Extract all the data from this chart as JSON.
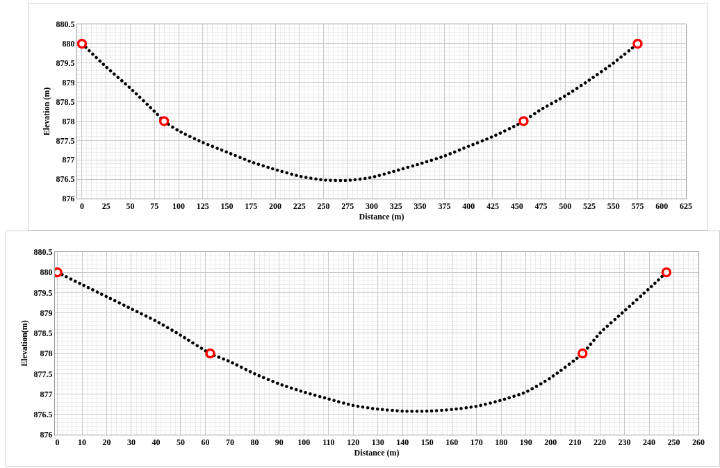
{
  "chart_data": [
    {
      "type": "scatter",
      "xlabel": "Distance (m)",
      "ylabel": "Elevation (m)",
      "xlim": [
        -5,
        625
      ],
      "ylim": [
        876,
        880.5
      ],
      "xticks": [
        0,
        25,
        50,
        75,
        100,
        125,
        150,
        175,
        200,
        225,
        250,
        275,
        300,
        325,
        350,
        375,
        400,
        425,
        450,
        475,
        500,
        525,
        550,
        575,
        600,
        625
      ],
      "yticks": [
        876,
        876.5,
        877,
        877.5,
        878,
        878.5,
        879,
        879.5,
        880,
        880.5
      ],
      "grid": true,
      "legend": false,
      "series": [
        {
          "type": "line",
          "color": "#000000",
          "marker": "none",
          "line_style": "dotted",
          "x": [
            0,
            25,
            50,
            75,
            85,
            100,
            125,
            150,
            175,
            200,
            225,
            250,
            275,
            300,
            325,
            350,
            375,
            400,
            425,
            450,
            457,
            475,
            500,
            525,
            550,
            575
          ],
          "values": [
            880,
            879.4,
            878.85,
            878.25,
            878,
            877.75,
            877.45,
            877.2,
            876.95,
            876.75,
            876.58,
            876.48,
            876.47,
            876.55,
            876.72,
            876.9,
            877.1,
            877.35,
            877.6,
            877.9,
            878,
            878.3,
            878.65,
            879.06,
            879.5,
            880
          ]
        },
        {
          "color": "#ff0000",
          "marker": "circle",
          "x": [
            0,
            85,
            457,
            575
          ],
          "values": [
            880,
            878,
            878,
            880
          ]
        }
      ]
    },
    {
      "type": "scatter",
      "xlabel": "Distance (m)",
      "ylabel": "Elevation(m)",
      "xlim": [
        -1,
        260
      ],
      "ylim": [
        876,
        880.5
      ],
      "xticks": [
        0,
        10,
        20,
        30,
        40,
        50,
        60,
        70,
        80,
        90,
        100,
        110,
        120,
        130,
        140,
        150,
        160,
        170,
        180,
        190,
        200,
        210,
        220,
        230,
        240,
        250,
        260
      ],
      "yticks": [
        876,
        876.5,
        877,
        877.5,
        878,
        878.5,
        879,
        879.5,
        880,
        880.5
      ],
      "grid": true,
      "legend": false,
      "series": [
        {
          "type": "line",
          "color": "#000000",
          "marker": "none",
          "line_style": "dotted",
          "x": [
            0,
            10,
            20,
            30,
            40,
            50,
            62,
            70,
            80,
            90,
            100,
            110,
            120,
            130,
            140,
            150,
            160,
            170,
            180,
            190,
            200,
            213,
            220,
            230,
            240,
            247
          ],
          "values": [
            880,
            879.7,
            879.4,
            879.1,
            878.8,
            878.45,
            878,
            877.8,
            877.5,
            877.25,
            877.05,
            876.88,
            876.72,
            876.63,
            876.58,
            876.58,
            876.62,
            876.7,
            876.85,
            877.05,
            877.4,
            878,
            878.5,
            879.05,
            879.6,
            880
          ]
        },
        {
          "color": "#ff0000",
          "marker": "circle",
          "x": [
            0,
            62,
            213,
            247
          ],
          "values": [
            880,
            878,
            878,
            880
          ]
        }
      ]
    }
  ]
}
